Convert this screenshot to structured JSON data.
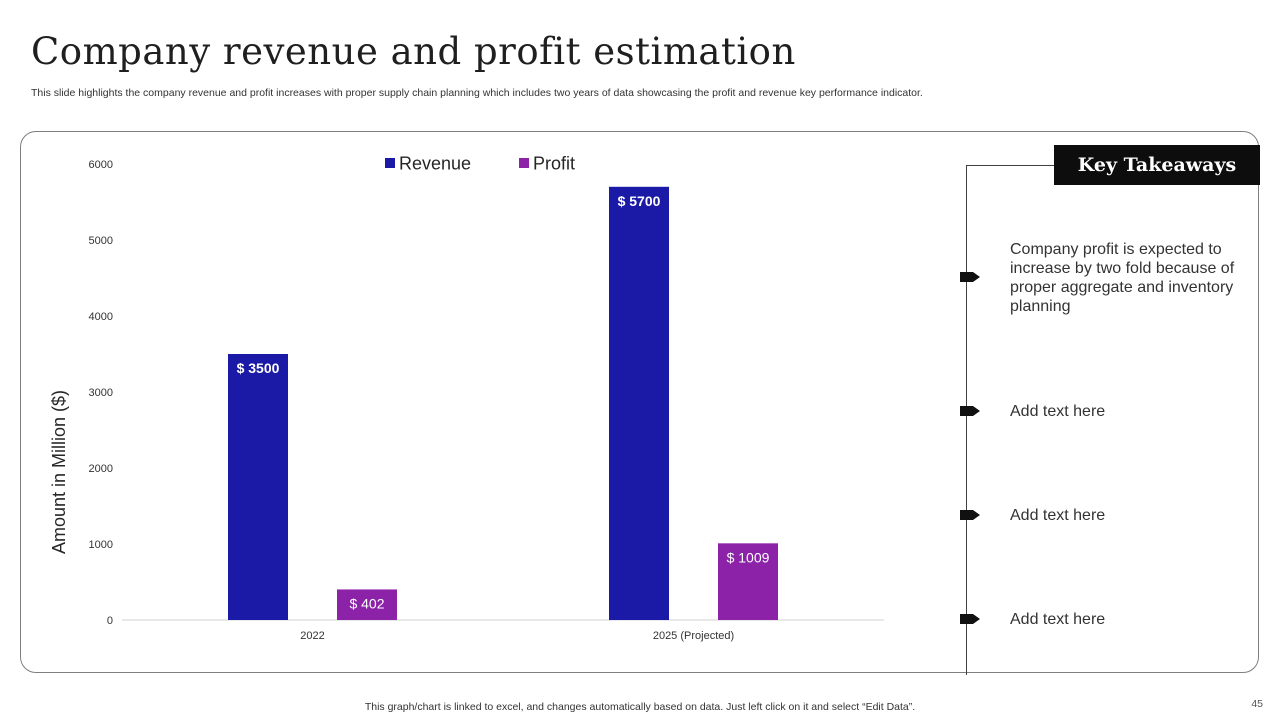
{
  "slide": {
    "title": "Company revenue and profit estimation",
    "subtitle": "This slide highlights the company revenue and profit increases with proper supply chain planning which includes two years of data showcasing the profit and revenue key performance indicator.",
    "footer": "This graph/chart is linked to excel,  and changes automatically based on data. Just left click on it and select “Edit Data”.",
    "page_number": "45"
  },
  "takeaways": {
    "heading": "Key Takeaways",
    "items": [
      "Company profit is expected to increase by two fold because of proper aggregate and inventory  planning",
      "Add text here",
      "Add text here",
      "Add text here"
    ]
  },
  "colors": {
    "revenue": "#1a1aa6",
    "profit": "#8b22a8",
    "marker": "#111111"
  },
  "chart_data": {
    "type": "bar",
    "title": "",
    "xlabel": "",
    "ylabel": "Amount in Million ($)",
    "categories": [
      "2022",
      "2025 (Projected)"
    ],
    "series": [
      {
        "name": "Revenue",
        "values": [
          3500,
          5700
        ],
        "labels": [
          "$ 3500",
          "$ 5700"
        ]
      },
      {
        "name": "Profit",
        "values": [
          402,
          1009
        ],
        "labels": [
          "$ 402",
          "$ 1009"
        ]
      }
    ],
    "ylim": [
      0,
      6000
    ],
    "yticks": [
      0,
      1000,
      2000,
      3000,
      4000,
      5000,
      6000
    ],
    "grid": false,
    "legend_position": "top"
  }
}
